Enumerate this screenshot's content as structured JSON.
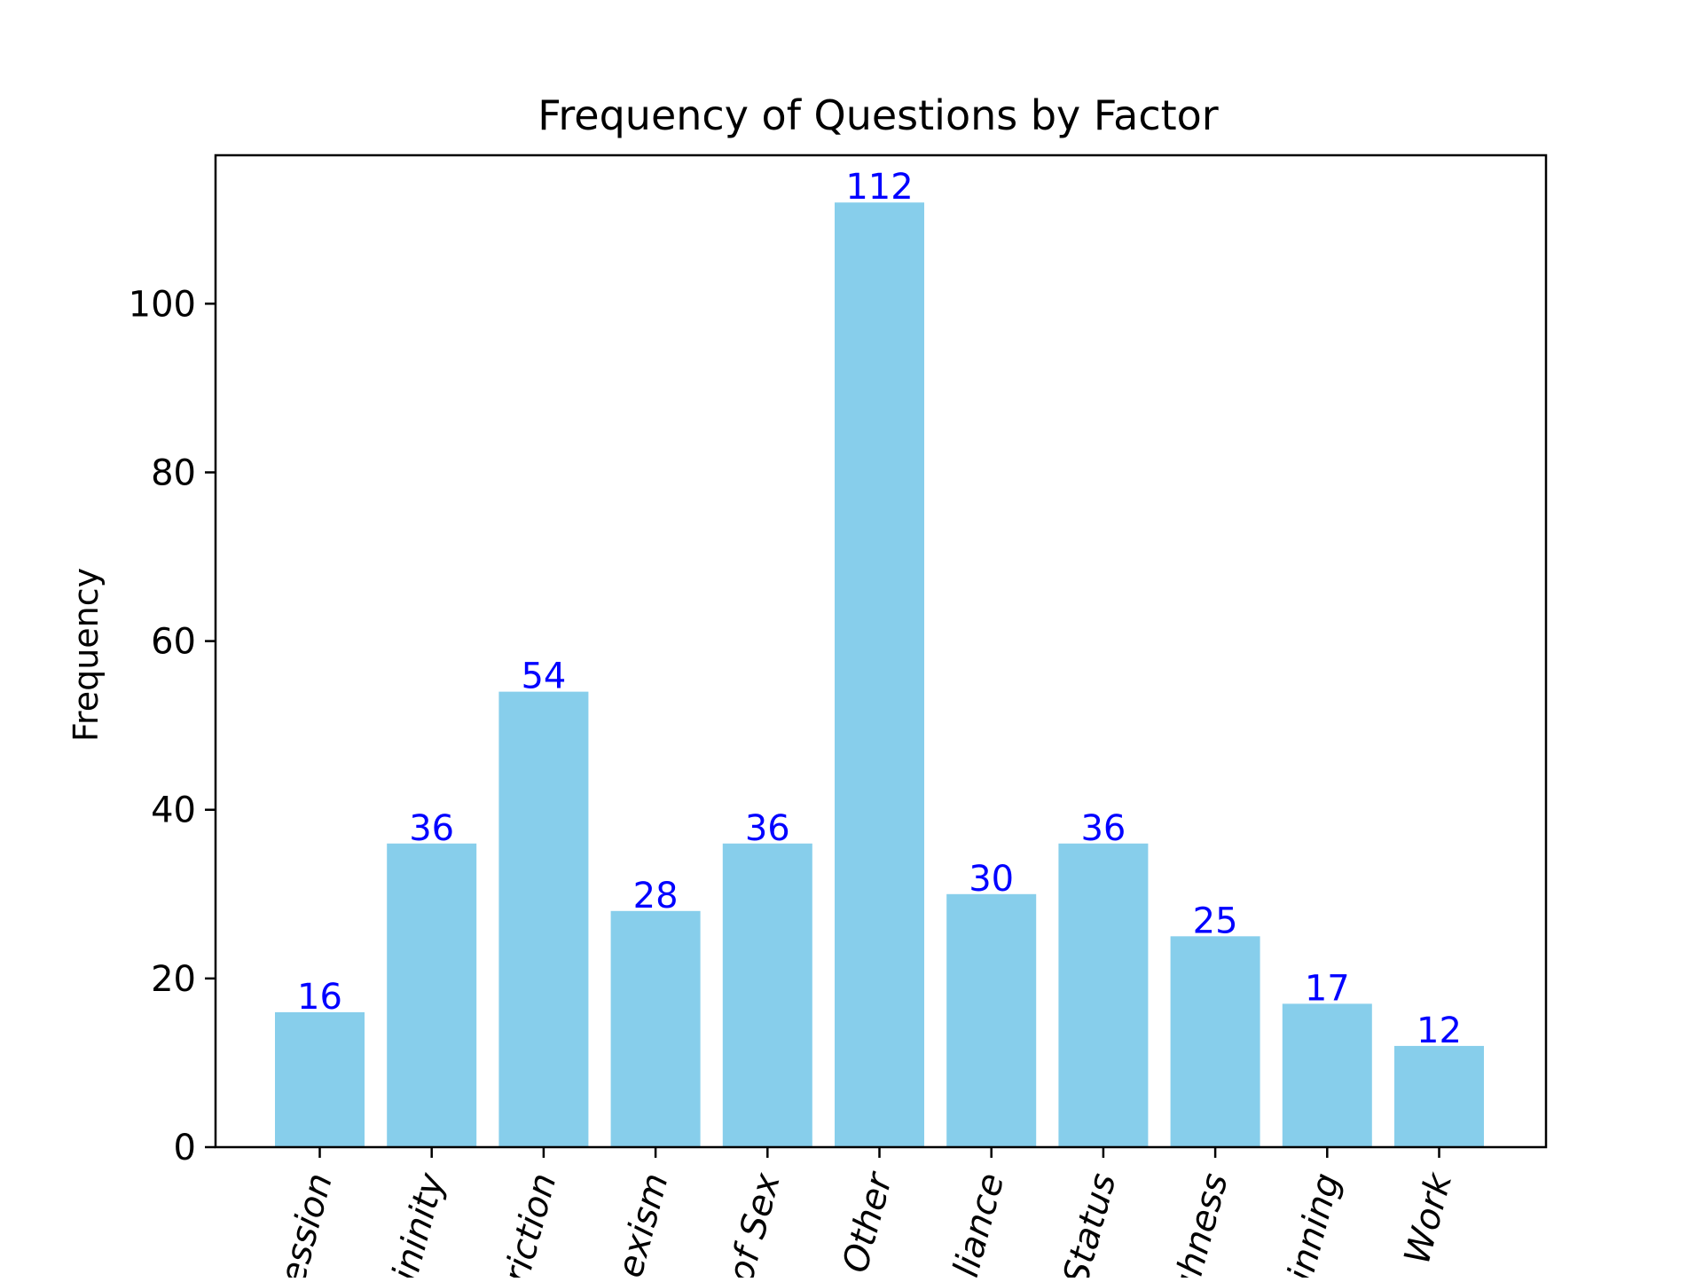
{
  "chart_data": {
    "type": "bar",
    "title": "Frequency of Questions by Factor",
    "xlabel": "",
    "ylabel": "Frequency",
    "categories": [
      "ession",
      "ininity",
      "riction",
      "exism",
      "of Sex",
      "Other",
      "liance",
      "Status",
      "uhness",
      "inning",
      "Work"
    ],
    "values": [
      16,
      36,
      54,
      28,
      36,
      112,
      30,
      36,
      25,
      17,
      12
    ],
    "yticks": [
      0,
      20,
      40,
      60,
      80,
      100
    ],
    "ylim": [
      0,
      117.6
    ],
    "grid": false,
    "legend": "none",
    "bar_color": "#87CEEB",
    "value_label_color": "#0000FF",
    "axis_color": "#000000",
    "xtick_label_style": "italic, rotated"
  }
}
